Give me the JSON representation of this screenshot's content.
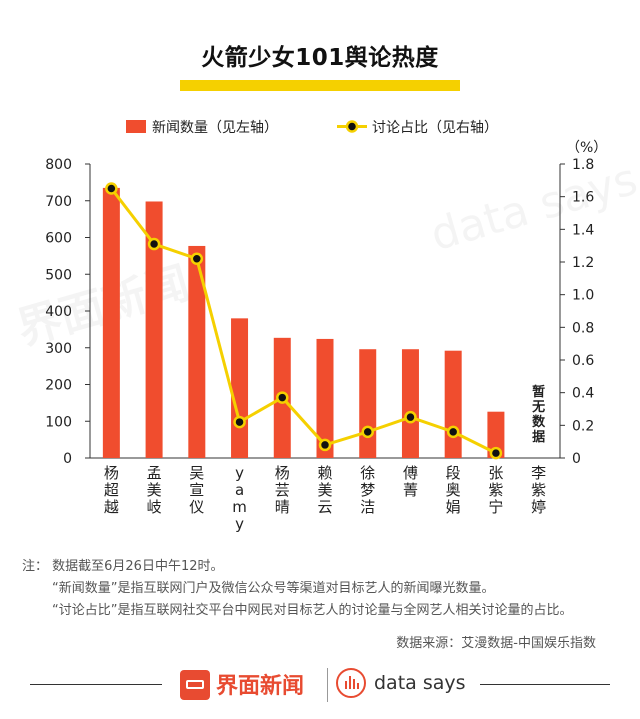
{
  "chart_data": {
    "type": "bar+line",
    "title": "火箭少女101舆论热度",
    "categories": [
      "杨超越",
      "孟美岐",
      "吴宣仪",
      "yamy",
      "杨芸晴",
      "赖美云",
      "徐梦洁",
      "傅菁",
      "段奥娟",
      "张紫宁",
      "李紫婷"
    ],
    "series": [
      {
        "name": "新闻数量（见左轴）",
        "kind": "bar",
        "axis": "left",
        "color": "#f04d2e",
        "values": [
          735,
          698,
          577,
          380,
          327,
          324,
          296,
          296,
          292,
          126,
          0
        ]
      },
      {
        "name": "讨论占比（见右轴）",
        "kind": "line",
        "axis": "right",
        "color": "#f5d000",
        "values": [
          1.65,
          1.31,
          1.22,
          0.22,
          0.37,
          0.08,
          0.16,
          0.25,
          0.16,
          0.03,
          null
        ]
      }
    ],
    "left_axis": {
      "min": 0,
      "max": 800,
      "ticks": [
        "0",
        "100",
        "200",
        "300",
        "400",
        "500",
        "600",
        "700",
        "800"
      ]
    },
    "right_axis": {
      "min": 0,
      "max": 1.8,
      "unit": "（%）",
      "ticks": [
        "0",
        "0.2",
        "0.4",
        "0.6",
        "0.8",
        "1.0",
        "1.2",
        "1.4",
        "1.6",
        "1.8"
      ]
    },
    "annotation": "暂无数据",
    "legend_position": "top-center"
  },
  "notes": {
    "line1": "注：  数据截至6月26日中午12时。",
    "line2": "“新闻数量”是指互联网门户及微信公众号等渠道对目标艺人的新闻曝光数量。",
    "line3": "“讨论占比”是指互联网社交平台中网民对目标艺人的讨论量与全网艺人相关讨论量的占比。"
  },
  "source": "数据来源：艾漫数据-中国娱乐指数",
  "footer": {
    "brand": "界面新闻",
    "brand2": "data says"
  },
  "watermark": {
    "brand": "界面新闻",
    "brand2": "data says"
  }
}
